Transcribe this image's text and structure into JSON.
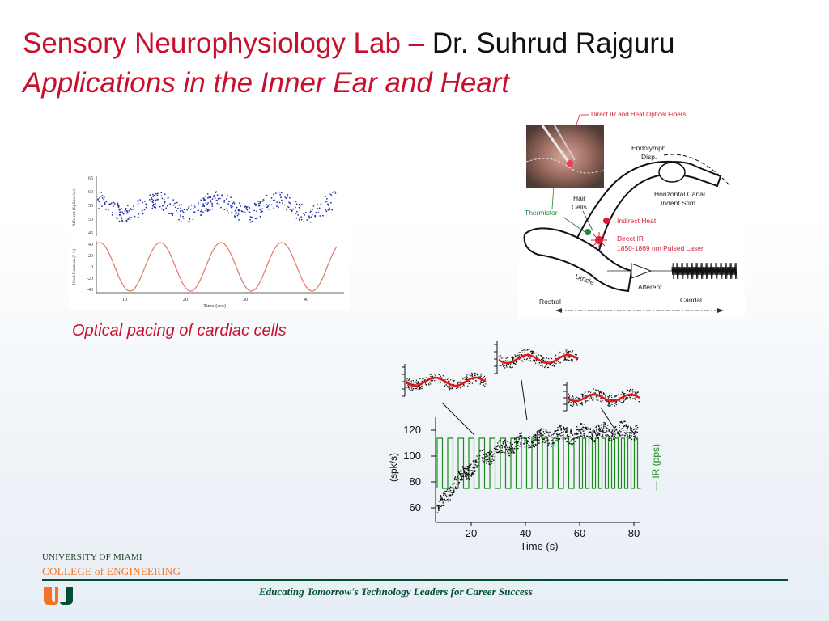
{
  "slide": {
    "title_red": "Sensory Neurophysiology Lab –",
    "title_black": "Dr. Suhrud Rajguru",
    "subtitle": "Applications in the Inner Ear and Heart",
    "caption": "Optical pacing of cardiac cells"
  },
  "figure_left": {
    "ylabel_top": "Afferent (Spikes /sec)",
    "yticks_top": [
      "65",
      "60",
      "55",
      "50",
      "45"
    ],
    "ylabel_bottom": "Head Rotation (° /s)",
    "yticks_bottom": [
      "40",
      "20",
      "0",
      "-20",
      "-40"
    ],
    "xticks": [
      "10",
      "20",
      "30",
      "40"
    ],
    "xlabel": "Time (sec)",
    "colors": {
      "dots": "#2233aa",
      "sine": "#e07a6a"
    }
  },
  "figure_ear": {
    "labels": {
      "fibers": "Direct IR and Heat Optical Fibers",
      "endolymph": "Endolymph",
      "disp": "Disp.",
      "horizontal": "Horizontal Canal",
      "indent": "Indent Stim.",
      "hair": "Hair",
      "cells": "Cells",
      "thermistor": "Thermistor",
      "indirect_heat": "Indirect Heat",
      "direct_ir": "Direct IR",
      "laser": "1850-1869 nm Pulsed Laser",
      "utricle": "Utricle",
      "afferent": "Afferent",
      "rostral": "Rostral",
      "caudal": "Caudal"
    },
    "colors": {
      "red": "#d81e3a",
      "green": "#1e8a3c"
    }
  },
  "figure_spikes": {
    "ylabel_left": "(spk/s)",
    "ylabel_right": "— IR (pps)",
    "yticks": [
      "120",
      "100",
      "80",
      "60"
    ],
    "xticks": [
      "20",
      "40",
      "60",
      "80"
    ],
    "xlabel": "Time (s)",
    "colors": {
      "ir": "#1a8a1a",
      "fit": "#e01818"
    }
  },
  "footer": {
    "university": "UNIVERSITY OF MIAMI",
    "college": "COLLEGE of ENGINEERING",
    "tagline": "Educating Tomorrow's Technology Leaders for Career Success",
    "colors": {
      "green": "#005030",
      "orange": "#f47321"
    }
  }
}
